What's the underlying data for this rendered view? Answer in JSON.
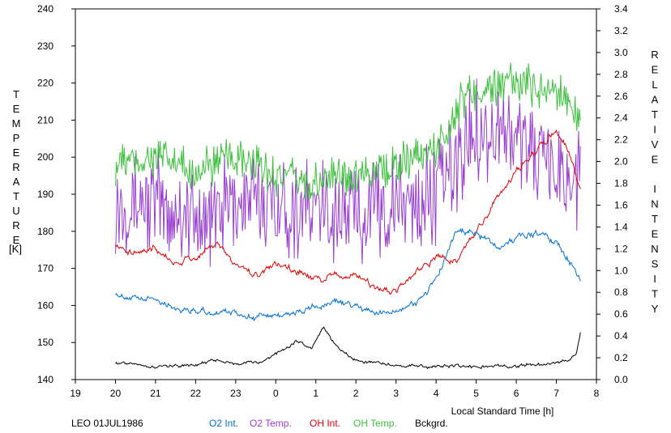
{
  "chart_data": {
    "type": "line",
    "caption": "LEO 01JUL1986",
    "xlabel": "Local Standard Time [h]",
    "ylabel_left": "TEMPERATURE",
    "ylabel_left_unit": "[K]",
    "ylabel_right": "RELATIVE INTENSITY",
    "x_tick_labels": [
      "19",
      "20",
      "21",
      "22",
      "23",
      "0",
      "1",
      "2",
      "3",
      "4",
      "5",
      "6",
      "7",
      "8"
    ],
    "xlim": [
      19,
      32
    ],
    "ylim_left": [
      140,
      240
    ],
    "y_left_ticks": [
      "140",
      "150",
      "160",
      "170",
      "180",
      "190",
      "200",
      "210",
      "220",
      "230",
      "240"
    ],
    "ylim_right": [
      0.0,
      3.4
    ],
    "y_right_ticks": [
      "0.0",
      "0.2",
      "0.4",
      "0.6",
      "0.8",
      "1.0",
      "1.2",
      "1.4",
      "1.6",
      "1.8",
      "2.0",
      "2.2",
      "2.4",
      "2.6",
      "2.8",
      "3.0",
      "3.2",
      "3.4"
    ],
    "grid": false,
    "legend_placement": "bottom",
    "series": [
      {
        "name": "O2 Int.",
        "axis": "right",
        "color": "#0070d0",
        "x": [
          20.0,
          20.5,
          21.0,
          21.5,
          22.0,
          22.5,
          23.0,
          23.5,
          24.0,
          24.5,
          25.0,
          25.5,
          26.0,
          26.5,
          27.0,
          27.5,
          28.0,
          28.5,
          29.0,
          29.5,
          30.0,
          30.5,
          31.0,
          31.3,
          31.6
        ],
        "y": [
          0.8,
          0.73,
          0.74,
          0.66,
          0.63,
          0.61,
          0.61,
          0.57,
          0.59,
          0.61,
          0.66,
          0.71,
          0.67,
          0.6,
          0.64,
          0.7,
          0.92,
          1.35,
          1.35,
          1.22,
          1.3,
          1.35,
          1.27,
          1.1,
          0.92
        ],
        "noise": 0.02
      },
      {
        "name": "O2 Temp.",
        "axis": "left",
        "color": "#9a40d0",
        "x": [
          20.0,
          21.0,
          22.0,
          23.0,
          24.0,
          25.0,
          26.0,
          27.0,
          28.0,
          28.6,
          29.0,
          30.0,
          31.0,
          31.6
        ],
        "y": [
          188,
          188,
          183,
          188,
          187,
          185,
          185,
          187,
          190,
          200,
          208,
          205,
          196,
          194
        ],
        "noise": 12
      },
      {
        "name": "OH Int.",
        "axis": "right",
        "color": "#e00000",
        "x": [
          20.0,
          20.5,
          21.0,
          21.5,
          22.0,
          22.5,
          23.0,
          23.5,
          24.0,
          24.5,
          25.0,
          25.5,
          26.0,
          26.5,
          27.0,
          27.5,
          28.0,
          28.5,
          29.0,
          29.5,
          30.0,
          30.5,
          31.0,
          31.3,
          31.6
        ],
        "y": [
          1.25,
          1.15,
          1.22,
          1.05,
          1.12,
          1.25,
          1.05,
          0.95,
          1.05,
          1.0,
          0.92,
          0.95,
          0.95,
          0.85,
          0.8,
          0.98,
          1.12,
          1.1,
          1.35,
          1.65,
          1.9,
          2.1,
          2.3,
          2.1,
          1.78
        ],
        "noise": 0.02
      },
      {
        "name": "OH Temp.",
        "axis": "left",
        "color": "#40c040",
        "x": [
          20.0,
          21.0,
          22.0,
          23.0,
          24.0,
          25.0,
          26.0,
          27.0,
          28.0,
          28.6,
          29.0,
          30.0,
          31.0,
          31.6
        ],
        "y": [
          198,
          200,
          196,
          200,
          195,
          193,
          196,
          198,
          202,
          215,
          218,
          220,
          218,
          210
        ],
        "noise": 5
      },
      {
        "name": "Bckgrd.",
        "axis": "right",
        "color": "#000000",
        "x": [
          20.0,
          21.0,
          22.0,
          22.5,
          23.0,
          23.7,
          24.3,
          24.5,
          24.9,
          25.2,
          25.5,
          26.0,
          26.5,
          27.0,
          28.0,
          29.0,
          30.0,
          31.0,
          31.5,
          31.6
        ],
        "y": [
          0.16,
          0.12,
          0.13,
          0.18,
          0.14,
          0.17,
          0.3,
          0.35,
          0.28,
          0.48,
          0.3,
          0.18,
          0.15,
          0.13,
          0.13,
          0.12,
          0.13,
          0.14,
          0.22,
          0.42
        ],
        "noise": 0.01
      }
    ]
  }
}
